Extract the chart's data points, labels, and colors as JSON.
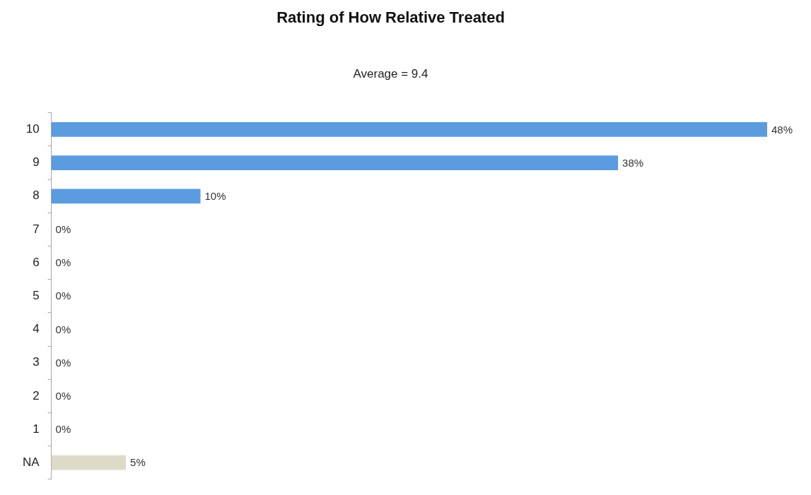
{
  "chart_data": {
    "type": "bar",
    "orientation": "horizontal",
    "title": "Rating of How Relative Treated",
    "subtitle": "Average = 9.4",
    "categories": [
      "10",
      "9",
      "8",
      "7",
      "6",
      "5",
      "4",
      "3",
      "2",
      "1",
      "NA"
    ],
    "values": [
      48,
      38,
      10,
      0,
      0,
      0,
      0,
      0,
      0,
      0,
      5
    ],
    "colors": [
      "#5b9be0",
      "#5b9be0",
      "#5b9be0",
      "#5b9be0",
      "#5b9be0",
      "#5b9be0",
      "#5b9be0",
      "#5b9be0",
      "#5b9be0",
      "#5b9be0",
      "#dedac8"
    ],
    "value_labels": [
      "48%",
      "38%",
      "10%",
      "0%",
      "0%",
      "0%",
      "0%",
      "0%",
      "0%",
      "0%",
      "5%"
    ],
    "xlim": [
      0,
      48
    ],
    "tick_labels": "y"
  }
}
